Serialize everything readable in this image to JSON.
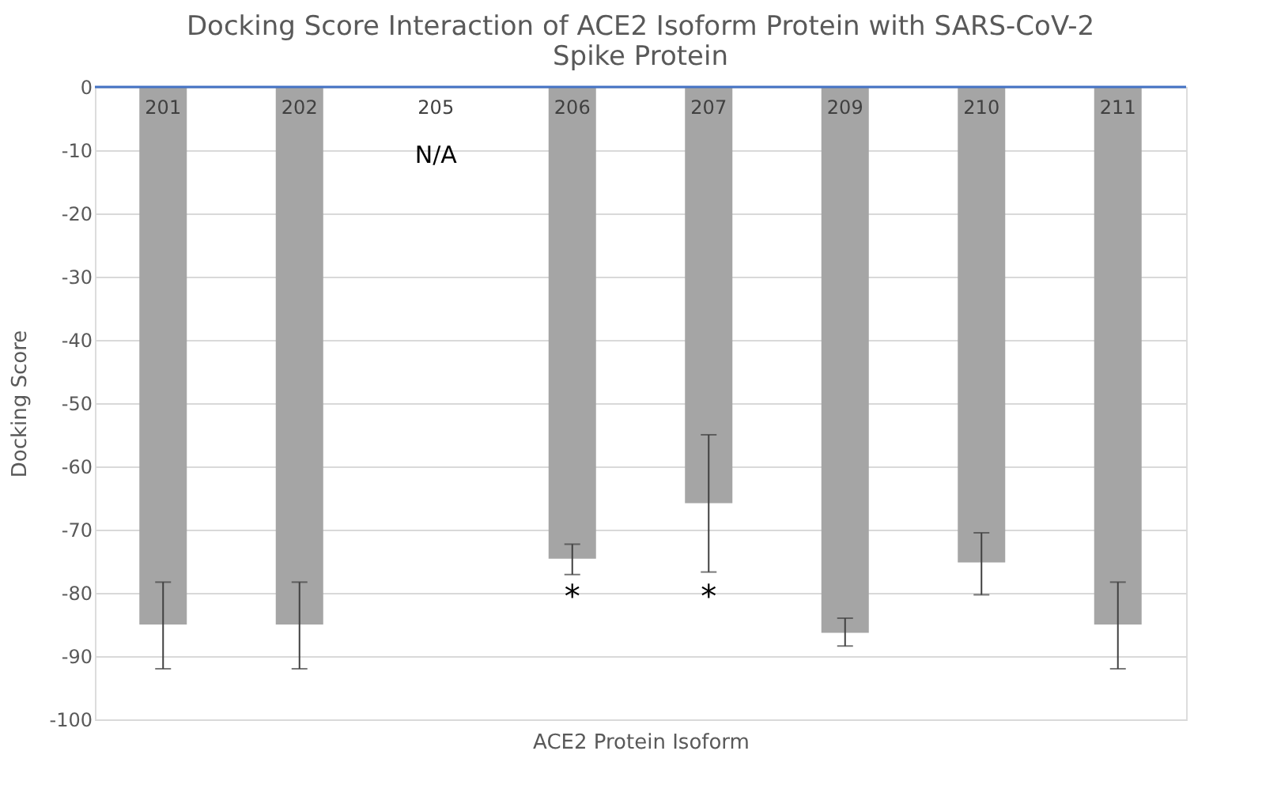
{
  "chart_data": {
    "type": "bar",
    "title": "Docking Score Interaction of ACE2 Isoform Protein with SARS-CoV-2 Spike Protein",
    "xlabel": "ACE2 Protein Isoform",
    "ylabel": "Docking Score",
    "categories": [
      "201",
      "202",
      "205",
      "206",
      "207",
      "209",
      "210",
      "211"
    ],
    "values": [
      -85,
      -85,
      null,
      -74.6,
      -65.8,
      -86.3,
      -75.2,
      -85
    ],
    "errors": [
      [
        -92,
        -78.3
      ],
      [
        -92,
        -78.3
      ],
      null,
      [
        -77.1,
        -72.3
      ],
      [
        -76.7,
        -55
      ],
      [
        -88.4,
        -84
      ],
      [
        -80.3,
        -70.5
      ],
      [
        -92,
        -78.3
      ]
    ],
    "color": "#a5a5a5",
    "ylim": [
      -100,
      0
    ],
    "yticks": [
      -100,
      -90,
      -80,
      -70,
      -60,
      -50,
      -40,
      -30,
      -20,
      -10,
      0
    ],
    "grid": "y",
    "annotations": [
      "N/A",
      "*",
      "*"
    ]
  }
}
